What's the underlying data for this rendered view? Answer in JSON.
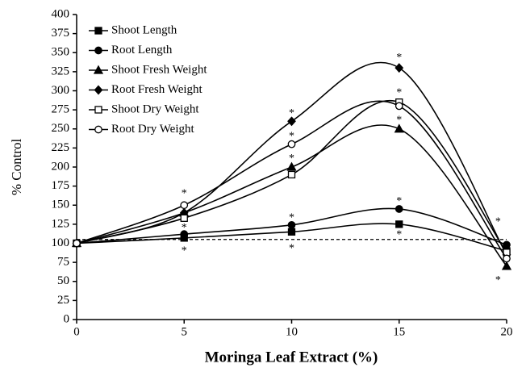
{
  "chart_data": {
    "type": "line",
    "x_label": "Moringa Leaf Extract (%)",
    "y_label": "% Control",
    "x": [
      0,
      5,
      10,
      15,
      20
    ],
    "series": [
      {
        "name": "Shoot Length",
        "color": "#000000",
        "marker": "square",
        "values": [
          100,
          107,
          115,
          125,
          90
        ]
      },
      {
        "name": "Root Length",
        "color": "#000000",
        "marker": "circle",
        "values": [
          100,
          112,
          124,
          145,
          98
        ]
      },
      {
        "name": "Shoot Fresh Weight",
        "color": "#000000",
        "marker": "triangle",
        "values": [
          100,
          140,
          200,
          250,
          70
        ]
      },
      {
        "name": "Root Fresh Weight",
        "color": "#000000",
        "marker": "diamond",
        "values": [
          100,
          140,
          260,
          330,
          85
        ]
      },
      {
        "name": "Shoot Dry Weight",
        "color": "#000000",
        "marker": "open-square",
        "values": [
          100,
          133,
          190,
          285,
          88
        ]
      },
      {
        "name": "Root Dry Weight",
        "color": "#000000",
        "marker": "open-circle",
        "values": [
          100,
          150,
          230,
          280,
          80
        ]
      }
    ],
    "reference_line": 105,
    "annotations": [
      {
        "text": "*",
        "x": 5,
        "y": 168
      },
      {
        "text": "*",
        "x": 5,
        "y": 123
      },
      {
        "text": "*",
        "x": 5,
        "y": 93
      },
      {
        "text": "*",
        "x": 10,
        "y": 273
      },
      {
        "text": "*",
        "x": 10,
        "y": 243
      },
      {
        "text": "*",
        "x": 10,
        "y": 214
      },
      {
        "text": "*",
        "x": 10,
        "y": 136
      },
      {
        "text": "*",
        "x": 10,
        "y": 96
      },
      {
        "text": "*",
        "x": 15,
        "y": 346
      },
      {
        "text": "*",
        "x": 15,
        "y": 300
      },
      {
        "text": "*",
        "x": 15,
        "y": 264
      },
      {
        "text": "*",
        "x": 15,
        "y": 158
      },
      {
        "text": "*",
        "x": 15,
        "y": 114
      },
      {
        "text": "*",
        "x": 19.6,
        "y": 131
      },
      {
        "text": "*",
        "x": 19.6,
        "y": 54
      }
    ],
    "xlim": [
      0,
      20
    ],
    "xticks": [
      0,
      5,
      10,
      15,
      20
    ],
    "ylim": [
      0,
      400
    ],
    "yticks": [
      0,
      25,
      50,
      75,
      100,
      125,
      150,
      175,
      200,
      225,
      250,
      275,
      300,
      325,
      350,
      375,
      400
    ],
    "legend": "upper left"
  }
}
